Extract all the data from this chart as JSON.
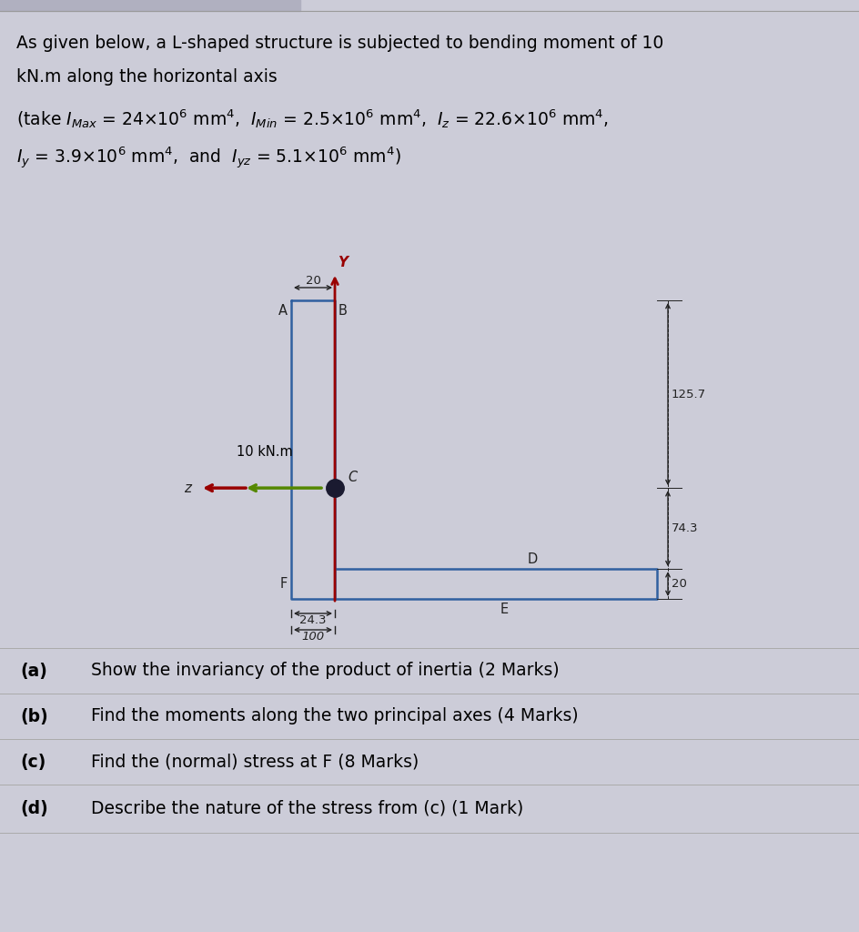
{
  "background_color": "#ccccd8",
  "title_line1": "As given below, a L-shaped structure is subjected to bending moment of 10",
  "title_line2": "kN.m along the horizontal axis",
  "formula_line1": "(take $I_{Max}$ = 24$\\times$10$^6$ mm$^4$,  $I_{Min}$ = 2.5$\\times$10$^6$ mm$^4$,  $I_z$ = 22.6$\\times$10$^6$ mm$^4$,",
  "formula_line2": "$I_y$ = 3.9$\\times$10$^6$ mm$^4$,  and  $I_{yz}$ = 5.1$\\times$10$^6$ mm$^4$)",
  "questions": [
    [
      "(a)",
      "Show the invariancy of the product of inertia (2 Marks)"
    ],
    [
      "(b)",
      "Find the moments along the two principal axes (4 Marks)"
    ],
    [
      "(c)",
      "Find the (normal) stress at F (8 Marks)"
    ],
    [
      "(d)",
      "Describe the nature of the stress from (c) (1 Mark)"
    ]
  ],
  "shape_color": "#3060a0",
  "centroid_color": "#1a1a30",
  "y_axis_color": "#990000",
  "z_arrow_color": "#558800",
  "moment_arrow_color": "#990000",
  "dim_color": "#222222",
  "label_color": "#222222",
  "dim_label_125": "125.7",
  "dim_label_74": "74.3",
  "dim_label_20flange": "20",
  "dim_label_24": "24.3",
  "dim_label_100": "100",
  "dim_label_20web": "20",
  "label_A": "A",
  "label_B": "B",
  "label_C": "C",
  "label_D": "D",
  "label_E": "E",
  "label_F": "F",
  "label_Y": "Y",
  "label_z": "z",
  "moment_label": "10 kN.m",
  "top_border_color": "#888888",
  "grid_line_color": "#aaaaaa"
}
